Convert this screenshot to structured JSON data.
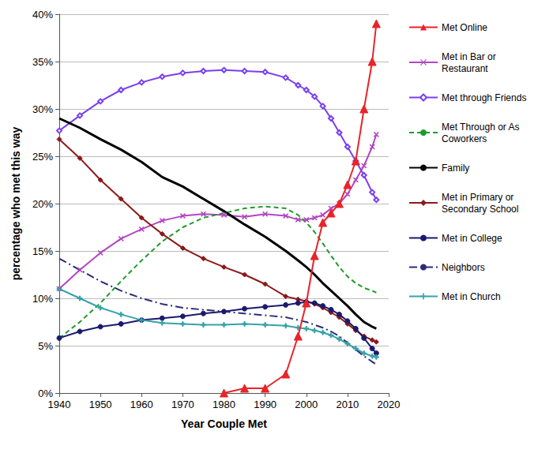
{
  "chart_data": {
    "type": "line",
    "x_label": "Year Couple Met",
    "y_label": "percentage who met this way",
    "x": [
      1940,
      1945,
      1950,
      1955,
      1960,
      1965,
      1970,
      1975,
      1980,
      1985,
      1990,
      1995,
      1998,
      2000,
      2002,
      2004,
      2006,
      2008,
      2010,
      2012,
      2014,
      2016,
      2017
    ],
    "xlim": [
      1940,
      2020
    ],
    "xticks": [
      1940,
      1950,
      1960,
      1970,
      1980,
      1990,
      2000,
      2010,
      2020
    ],
    "ylim": [
      0,
      40
    ],
    "yticks": [
      {
        "value": 0,
        "label": "0%"
      },
      {
        "value": 5,
        "label": "5%"
      },
      {
        "value": 10,
        "label": "10%"
      },
      {
        "value": 15,
        "label": "15%"
      },
      {
        "value": 20,
        "label": "20%"
      },
      {
        "value": 25,
        "label": "25%"
      },
      {
        "value": 30,
        "label": "30%"
      },
      {
        "value": 35,
        "label": "35%"
      },
      {
        "value": 40,
        "label": "40%"
      }
    ],
    "grid": true,
    "legend": "right",
    "series": [
      {
        "name": "Met Online",
        "color": "#e8242a",
        "marker": "triangle",
        "line_style": "solid",
        "values": [
          null,
          null,
          null,
          null,
          null,
          null,
          null,
          null,
          0,
          0.5,
          0.5,
          2,
          6,
          9.5,
          14.5,
          18,
          19,
          20,
          22,
          24.5,
          30,
          35,
          39
        ]
      },
      {
        "name": "Met in Bar or Restaurant",
        "color": "#b146c2",
        "marker": "x",
        "line_style": "solid",
        "values": [
          11,
          13,
          14.8,
          16.3,
          17.3,
          18.2,
          18.7,
          18.9,
          18.8,
          18.6,
          18.9,
          18.7,
          18.3,
          18.3,
          18.5,
          18.8,
          19.5,
          20,
          21,
          22.5,
          24,
          26,
          27.3
        ]
      },
      {
        "name": "Met through Friends",
        "color": "#7a3ff0",
        "marker": "diamond_open",
        "line_style": "solid",
        "values": [
          27.7,
          29.3,
          30.8,
          32,
          32.8,
          33.4,
          33.8,
          34,
          34.1,
          34,
          33.9,
          33.3,
          32.5,
          32,
          31.3,
          30.3,
          29,
          27.5,
          26,
          24.5,
          23,
          21.2,
          20.4
        ]
      },
      {
        "name": "Met Through or As Coworkers",
        "color": "#1f9b2c",
        "marker": "none",
        "line_style": "dashed",
        "values": [
          5.8,
          7.5,
          9.5,
          11.8,
          14,
          16,
          17.5,
          18.5,
          19,
          19.5,
          19.7,
          19.5,
          18.8,
          18,
          17,
          15.8,
          14.5,
          13.3,
          12.3,
          11.6,
          11.1,
          10.8,
          10.6
        ]
      },
      {
        "name": "Family",
        "color": "#000000",
        "marker": "none",
        "line_style": "solid",
        "values": [
          29,
          28,
          26.8,
          25.7,
          24.4,
          22.8,
          21.8,
          20.5,
          19.2,
          17.8,
          16.5,
          15,
          14,
          13.3,
          12.5,
          11.6,
          10.8,
          10,
          9.2,
          8.3,
          7.5,
          7,
          6.8
        ]
      },
      {
        "name": "Met in Primary or Secondary School",
        "color": "#8b1a1a",
        "marker": "diamond",
        "line_style": "solid",
        "values": [
          26.8,
          24.8,
          22.5,
          20.5,
          18.5,
          16.8,
          15.3,
          14.2,
          13.3,
          12.5,
          11.5,
          10.2,
          9.9,
          9.7,
          9.4,
          9,
          8.5,
          8,
          7.3,
          6.6,
          6,
          5.6,
          5.4
        ]
      },
      {
        "name": "Met in College",
        "color": "#1a1a6e",
        "marker": "circle",
        "line_style": "solid",
        "values": [
          5.8,
          6.5,
          7,
          7.3,
          7.7,
          7.9,
          8.1,
          8.4,
          8.6,
          8.9,
          9.1,
          9.3,
          9.5,
          9.6,
          9.5,
          9.2,
          8.8,
          8.3,
          7.6,
          6.8,
          5.8,
          4.7,
          4.2
        ]
      },
      {
        "name": "Neighbors",
        "color": "#2c2c7a",
        "marker": "none",
        "line_style": "dashdot",
        "values": [
          14.2,
          13,
          11.8,
          10.8,
          10,
          9.4,
          9,
          8.8,
          8.6,
          8.4,
          8.2,
          8,
          7.7,
          7.5,
          7.2,
          6.9,
          6.5,
          6,
          5.3,
          4.6,
          3.9,
          3.3,
          3
        ]
      },
      {
        "name": "Met in Church",
        "color": "#36a3a8",
        "marker": "plus",
        "line_style": "solid",
        "values": [
          11,
          10,
          9,
          8.3,
          7.7,
          7.4,
          7.3,
          7.2,
          7.2,
          7.3,
          7.2,
          7.1,
          6.9,
          6.8,
          6.6,
          6.4,
          6.1,
          5.7,
          5.2,
          4.7,
          4.2,
          3.9,
          3.8
        ]
      }
    ]
  }
}
